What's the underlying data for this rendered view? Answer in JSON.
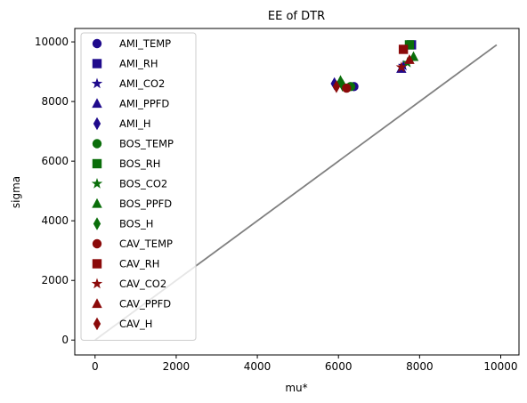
{
  "chart_data": {
    "type": "scatter",
    "title": "EE of DTR",
    "xlabel": "mu*",
    "ylabel": "sigma",
    "xlim": [
      -500,
      10450
    ],
    "ylim": [
      -500,
      10450
    ],
    "xticks": [
      0,
      2000,
      4000,
      6000,
      8000,
      10000
    ],
    "yticks": [
      0,
      2000,
      4000,
      6000,
      8000,
      10000
    ],
    "grid": false,
    "legend_position": "top-left",
    "reference_line": {
      "x": [
        0,
        9900
      ],
      "y": [
        0,
        9900
      ],
      "color": "#808080"
    },
    "series": [
      {
        "name": "AMI_TEMP",
        "marker": "circle",
        "color": "#1f0a8c",
        "points": [
          [
            6380,
            8500
          ]
        ]
      },
      {
        "name": "AMI_RH",
        "marker": "square",
        "color": "#1f0a8c",
        "points": [
          [
            7800,
            9900
          ]
        ]
      },
      {
        "name": "AMI_CO2",
        "marker": "star",
        "color": "#1f0a8c",
        "points": [
          [
            7600,
            9200
          ]
        ]
      },
      {
        "name": "AMI_PPFD",
        "marker": "triangle",
        "color": "#1f0a8c",
        "points": [
          [
            7550,
            9100
          ]
        ]
      },
      {
        "name": "AMI_H",
        "marker": "diamond",
        "color": "#1f0a8c",
        "points": [
          [
            5900,
            8600
          ]
        ]
      },
      {
        "name": "BOS_TEMP",
        "marker": "circle",
        "color": "#0a6e0a",
        "points": [
          [
            6300,
            8500
          ]
        ]
      },
      {
        "name": "BOS_RH",
        "marker": "square",
        "color": "#0a6e0a",
        "points": [
          [
            7750,
            9900
          ]
        ]
      },
      {
        "name": "BOS_CO2",
        "marker": "star",
        "color": "#0a6e0a",
        "points": [
          [
            7700,
            9300
          ]
        ]
      },
      {
        "name": "BOS_PPFD",
        "marker": "triangle",
        "color": "#0a6e0a",
        "points": [
          [
            7850,
            9500
          ],
          [
            6050,
            8700
          ]
        ]
      },
      {
        "name": "BOS_H",
        "marker": "diamond",
        "color": "#0a6e0a",
        "points": [
          [
            6100,
            8550
          ]
        ]
      },
      {
        "name": "CAV_TEMP",
        "marker": "circle",
        "color": "#8b0a0a",
        "points": [
          [
            6200,
            8450
          ]
        ]
      },
      {
        "name": "CAV_RH",
        "marker": "square",
        "color": "#8b0a0a",
        "points": [
          [
            7600,
            9750
          ]
        ]
      },
      {
        "name": "CAV_CO2",
        "marker": "star",
        "color": "#8b0a0a",
        "points": [
          [
            7550,
            9150
          ]
        ]
      },
      {
        "name": "CAV_PPFD",
        "marker": "triangle",
        "color": "#8b0a0a",
        "points": [
          [
            7750,
            9400
          ]
        ]
      },
      {
        "name": "CAV_H",
        "marker": "diamond",
        "color": "#8b0a0a",
        "points": [
          [
            5950,
            8500
          ]
        ]
      }
    ]
  }
}
